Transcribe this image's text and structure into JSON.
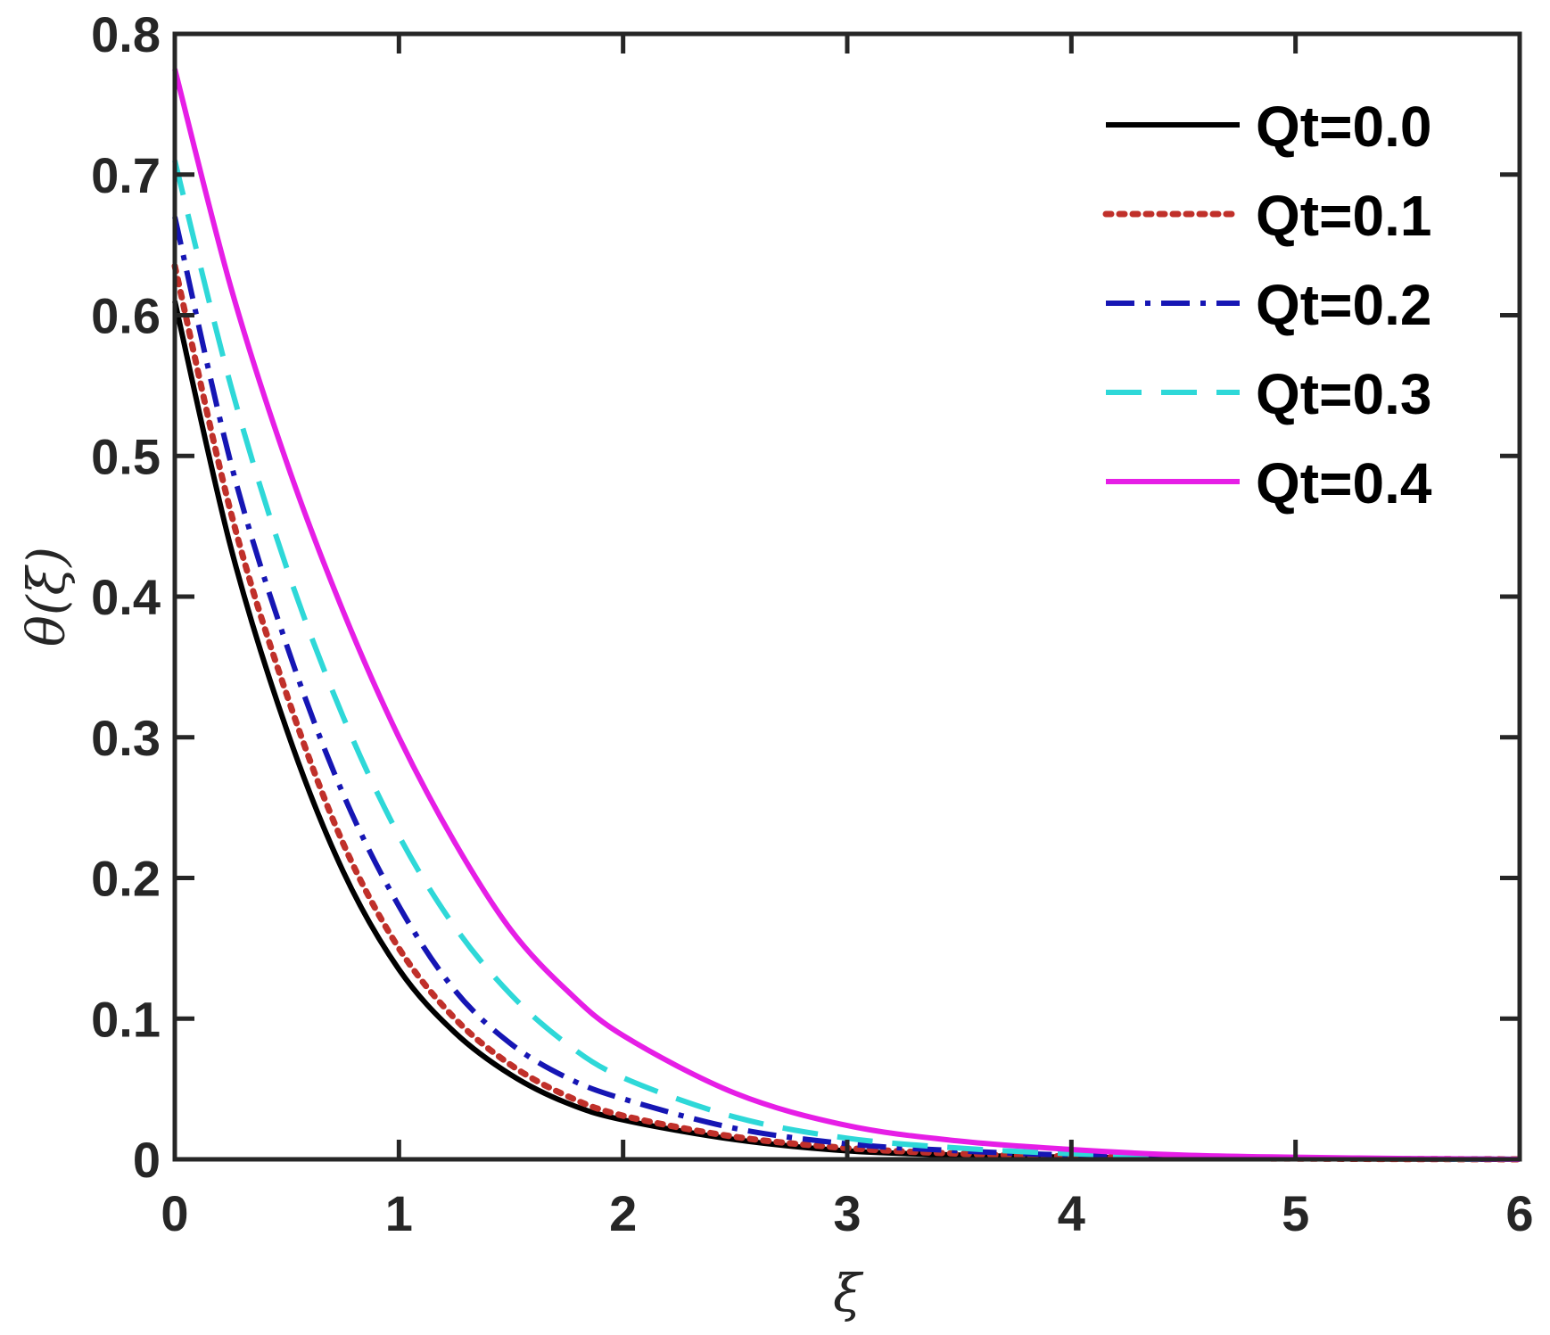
{
  "chart_data": {
    "type": "line",
    "xlabel": "ξ",
    "ylabel": "θ(ξ)",
    "xlim": [
      0,
      6
    ],
    "ylim": [
      0,
      0.8
    ],
    "xticks": [
      0,
      1,
      2,
      3,
      4,
      5,
      6
    ],
    "xtick_labels": [
      "0",
      "1",
      "2",
      "3",
      "4",
      "5",
      "6"
    ],
    "yticks": [
      0,
      0.1,
      0.2,
      0.3,
      0.4,
      0.5,
      0.6,
      0.7,
      0.8
    ],
    "ytick_labels": [
      "0",
      "0.1",
      "0.2",
      "0.3",
      "0.4",
      "0.5",
      "0.6",
      "0.7",
      "0.8"
    ],
    "grid": false,
    "legend_position": "top-right",
    "x": [
      0,
      0.25,
      0.5,
      0.75,
      1.0,
      1.25,
      1.5,
      1.75,
      2.0,
      2.5,
      3.0,
      3.5,
      4.0,
      4.5,
      5.0,
      5.5,
      6.0
    ],
    "series": [
      {
        "name": "Qt=0.0",
        "color": "#000000",
        "style": "solid",
        "values": [
          0.61,
          0.435,
          0.305,
          0.205,
          0.135,
          0.09,
          0.06,
          0.04,
          0.028,
          0.014,
          0.006,
          0.003,
          0.0015,
          0.0008,
          0.0004,
          0.0002,
          0.0
        ]
      },
      {
        "name": "Qt=0.1",
        "color": "#c0302a",
        "style": "dotted",
        "values": [
          0.635,
          0.46,
          0.33,
          0.225,
          0.15,
          0.1,
          0.067,
          0.045,
          0.031,
          0.016,
          0.008,
          0.004,
          0.002,
          0.001,
          0.0005,
          0.0002,
          0.0
        ]
      },
      {
        "name": "Qt=0.2",
        "color": "#1616b4",
        "style": "dashdot",
        "values": [
          0.67,
          0.495,
          0.365,
          0.26,
          0.18,
          0.12,
          0.082,
          0.058,
          0.043,
          0.022,
          0.011,
          0.006,
          0.003,
          0.0015,
          0.0007,
          0.0003,
          0.0
        ]
      },
      {
        "name": "Qt=0.3",
        "color": "#2ed8d8",
        "style": "dashed",
        "values": [
          0.71,
          0.55,
          0.42,
          0.315,
          0.23,
          0.165,
          0.117,
          0.082,
          0.058,
          0.03,
          0.015,
          0.008,
          0.004,
          0.002,
          0.001,
          0.0004,
          0.0
        ]
      },
      {
        "name": "Qt=0.4",
        "color": "#e61ee6",
        "style": "solid",
        "values": [
          0.775,
          0.62,
          0.495,
          0.39,
          0.3,
          0.225,
          0.163,
          0.12,
          0.088,
          0.047,
          0.024,
          0.013,
          0.007,
          0.003,
          0.0015,
          0.0006,
          0.0
        ]
      }
    ]
  }
}
